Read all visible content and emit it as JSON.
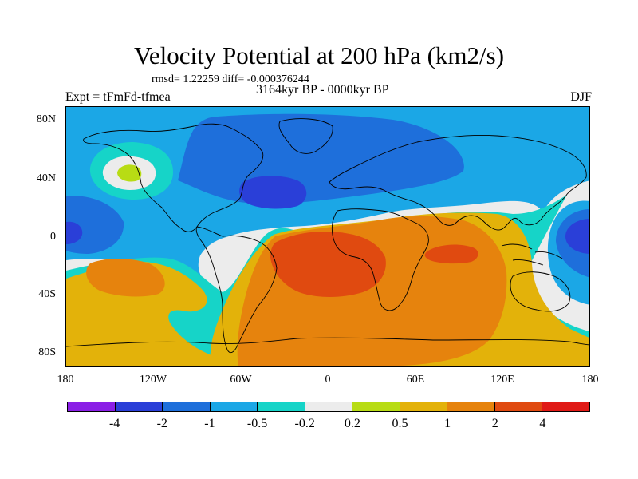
{
  "title": "Velocity Potential at 200 hPa (km2/s)",
  "stat_text": "rmsd= 1.22259 diff= -0.000376244",
  "subtitle": "3164kyr BP - 0000kyr BP",
  "experiment_label": "Expt = tFmFd-tfmea",
  "season_label": "DJF",
  "map": {
    "projection": "cylindrical equidistant",
    "lon_range": [
      -180,
      180
    ],
    "lat_range": [
      -90,
      90
    ],
    "x_ticks": [
      "180",
      "120W",
      "60W",
      "0",
      "60E",
      "120E",
      "180"
    ],
    "y_ticks": [
      "80N",
      "40N",
      "0",
      "40S",
      "80S"
    ],
    "coastlines": true
  },
  "colorbar": {
    "levels": [
      "-4",
      "-2",
      "-1",
      "-0.5",
      "-0.2",
      "0.2",
      "0.5",
      "1",
      "2",
      "4"
    ],
    "colors": [
      "#8a1fe6",
      "#2a3fd8",
      "#1e6fdb",
      "#1ba7e6",
      "#16d4c8",
      "#ececec",
      "#b8dc14",
      "#e3b20a",
      "#e6830d",
      "#e04a10",
      "#e01a16"
    ]
  }
}
